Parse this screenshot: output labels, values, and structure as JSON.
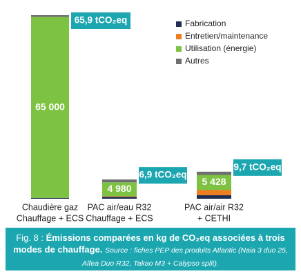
{
  "chart_data": {
    "type": "stacked_bar",
    "categories": [
      [
        "Chaudière gaz",
        "Chauffage + ECS"
      ],
      [
        "PAC air/eau R32",
        "Chauffage + ECS"
      ],
      [
        "PAC air/air R32",
        "+ CETHI"
      ]
    ],
    "series": [
      {
        "name": "Fabrication",
        "color": "#1f2d4f",
        "values": [
          300,
          700,
          1300
        ]
      },
      {
        "name": "Entretien/maintenance",
        "color": "#f07d1e",
        "values": [
          0,
          200,
          1800
        ]
      },
      {
        "name": "Utilisation (énergie)",
        "color": "#7dc242",
        "values": [
          65000,
          4980,
          5428
        ],
        "value_labels": [
          "65 000",
          "4 980",
          "5 428"
        ]
      },
      {
        "name": "Autres",
        "color": "#6d6e70",
        "values": [
          600,
          1020,
          1172
        ]
      }
    ],
    "annotations": [
      "65,9 tCO₂eq",
      "6,9 tCO₂eq",
      "9,7 tCO₂eq"
    ],
    "annotation_color": "#1ba6b0",
    "legend": "upper right",
    "caption": {
      "figure": "Fig. 8 : ",
      "title": "Émissions comparées en kg de CO₂eq associées à trois modes de chauffage.",
      "source": "Source : fiches PEP des produits Atlantic (Naia 3 duo 25, Alfea Duo R32, Takao M3 + Calypso split)."
    }
  }
}
